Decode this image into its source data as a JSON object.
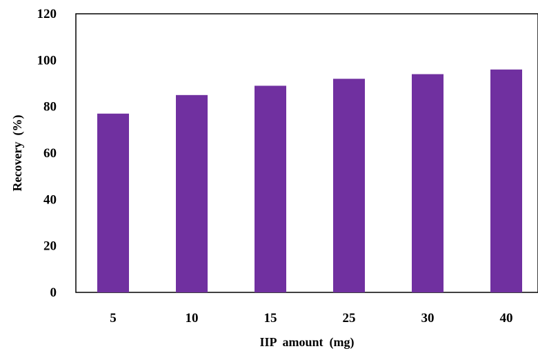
{
  "chart_data": {
    "type": "bar",
    "categories": [
      "5",
      "10",
      "15",
      "25",
      "30",
      "40"
    ],
    "values": [
      77,
      85,
      89,
      92,
      94,
      96
    ],
    "title": "",
    "xlabel": "IIP  amount  (mg)",
    "ylabel": "Recovery  (%)",
    "ylim": [
      0,
      120
    ],
    "yticks": [
      0,
      20,
      40,
      60,
      80,
      100,
      120
    ],
    "grid": false,
    "legend": "none",
    "bar_color": "#7030a0",
    "axis_color": "#000000"
  }
}
